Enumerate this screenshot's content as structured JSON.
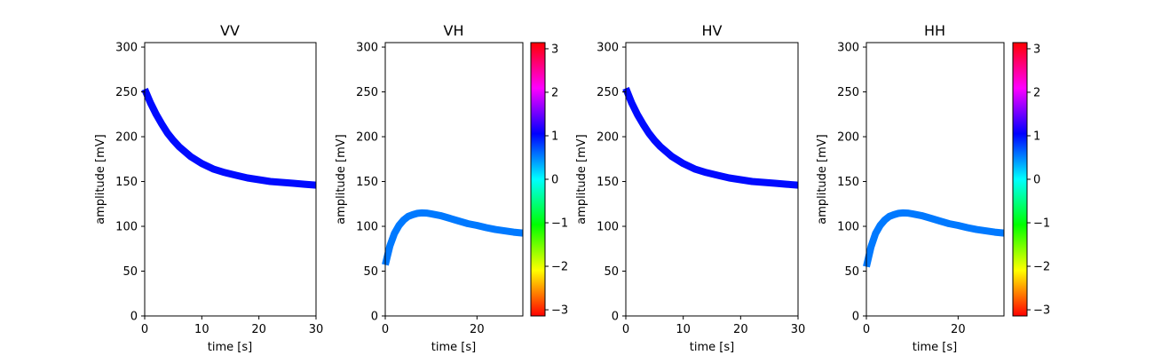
{
  "chart_data": [
    {
      "type": "line",
      "title": "VV",
      "xlabel": "time [s]",
      "ylabel": "amplitude [mV]",
      "xlim": [
        0,
        30
      ],
      "ylim": [
        0,
        305
      ],
      "xticks": [
        0,
        10,
        20,
        30
      ],
      "yticks": [
        0,
        50,
        100,
        150,
        200,
        250,
        300
      ],
      "series": [
        {
          "x": [
            0,
            1,
            2,
            3,
            4,
            5,
            6,
            8,
            10,
            12,
            14,
            16,
            18,
            20,
            22,
            24,
            26,
            28,
            30
          ],
          "y": [
            253,
            238,
            225,
            214,
            204,
            196,
            189,
            178,
            170,
            164,
            160,
            157,
            154,
            152,
            150,
            149,
            148,
            147,
            146
          ],
          "phase": 1.0
        }
      ]
    },
    {
      "type": "line",
      "title": "VH",
      "xlabel": "time [s]",
      "ylabel": "amplitude [mV]",
      "xlim": [
        0,
        30
      ],
      "ylim": [
        0,
        305
      ],
      "xticks": [
        0,
        20
      ],
      "yticks": [
        0,
        50,
        100,
        150,
        200,
        250,
        300
      ],
      "series": [
        {
          "x": [
            0,
            1,
            2,
            3,
            4,
            5,
            6,
            7,
            8,
            9,
            10,
            12,
            14,
            16,
            18,
            20,
            22,
            24,
            26,
            28,
            30
          ],
          "y": [
            57,
            78,
            92,
            101,
            107,
            111,
            113,
            114.5,
            115,
            114.8,
            114,
            112,
            109,
            106,
            103,
            101,
            98.5,
            96.5,
            95,
            93.5,
            92.5
          ],
          "phase": 0.55
        }
      ]
    },
    {
      "type": "line",
      "title": "HV",
      "xlabel": "time [s]",
      "ylabel": "amplitude [mV]",
      "xlim": [
        0,
        30
      ],
      "ylim": [
        0,
        305
      ],
      "xticks": [
        0,
        10,
        20,
        30
      ],
      "yticks": [
        0,
        50,
        100,
        150,
        200,
        250,
        300
      ],
      "series": [
        {
          "x": [
            0,
            1,
            2,
            3,
            4,
            5,
            6,
            8,
            10,
            12,
            14,
            16,
            18,
            20,
            22,
            24,
            26,
            28,
            30
          ],
          "y": [
            254,
            238,
            225,
            214,
            204,
            196,
            189,
            178,
            170,
            164,
            160,
            157,
            154,
            152,
            150,
            149,
            148,
            147,
            146
          ],
          "phase": 1.0
        }
      ]
    },
    {
      "type": "line",
      "title": "HH",
      "xlabel": "time [s]",
      "ylabel": "amplitude [mV]",
      "xlim": [
        0,
        30
      ],
      "ylim": [
        0,
        305
      ],
      "xticks": [
        0,
        20
      ],
      "yticks": [
        0,
        50,
        100,
        150,
        200,
        250,
        300
      ],
      "series": [
        {
          "x": [
            0,
            1,
            2,
            3,
            4,
            5,
            6,
            7,
            8,
            9,
            10,
            12,
            14,
            16,
            18,
            20,
            22,
            24,
            26,
            28,
            30
          ],
          "y": [
            55,
            77,
            92,
            101,
            107,
            111,
            113,
            114.5,
            115,
            114.8,
            114,
            112,
            109,
            106,
            103,
            101,
            98.5,
            96.5,
            95,
            93.5,
            92.5
          ],
          "phase": 0.55
        }
      ]
    }
  ],
  "colorbars": [
    {
      "range": [
        -3.14159,
        3.14159
      ],
      "ticks": [
        -3,
        -2,
        -1,
        0,
        1,
        2,
        3
      ],
      "tick_labels": [
        "−3",
        "−2",
        "−1",
        "0",
        "1",
        "2",
        "3"
      ],
      "colormap": "hsv"
    },
    {
      "range": [
        -3.14159,
        3.14159
      ],
      "ticks": [
        -3,
        -2,
        -1,
        0,
        1,
        2,
        3
      ],
      "tick_labels": [
        "−3",
        "−2",
        "−1",
        "0",
        "1",
        "2",
        "3"
      ],
      "colormap": "hsv"
    }
  ]
}
